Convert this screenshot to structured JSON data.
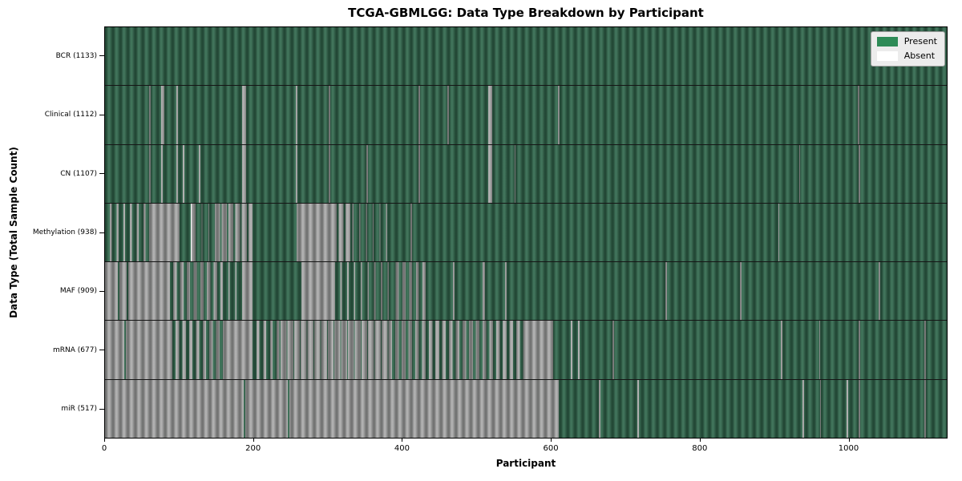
{
  "chart_data": {
    "type": "heatmap",
    "title": "TCGA-GBMLGG: Data Type Breakdown by Participant",
    "xlabel": "Participant",
    "ylabel": "Data Type (Total Sample Count)",
    "x_range": [
      0,
      1133
    ],
    "x_ticks": [
      0,
      200,
      400,
      600,
      800,
      1000
    ],
    "grid": false,
    "legend": {
      "position": "upper right",
      "entries": [
        {
          "label": "Present",
          "color": "#2e8b57"
        },
        {
          "label": "Absent",
          "color": "#ffffff"
        }
      ]
    },
    "colors": {
      "present": "#31684d",
      "absent": "#aaaaaa",
      "legend_bg": "#ececec"
    },
    "state_key": {
      "P": "present",
      "A": "absent",
      "M##": "mixed run, ## percent present"
    },
    "rows": [
      {
        "name": "BCR",
        "label": "BCR (1133)",
        "total": 1133,
        "segments": [
          [
            0,
            1133,
            "P"
          ]
        ]
      },
      {
        "name": "Clinical",
        "label": "Clinical (1112)",
        "total": 1112,
        "segments": [
          [
            0,
            59,
            "P"
          ],
          [
            59,
            61,
            "A"
          ],
          [
            61,
            75,
            "P"
          ],
          [
            75,
            80,
            "A"
          ],
          [
            80,
            96,
            "P"
          ],
          [
            96,
            98,
            "A"
          ],
          [
            98,
            184,
            "P"
          ],
          [
            184,
            190,
            "A"
          ],
          [
            190,
            257,
            "P"
          ],
          [
            257,
            259,
            "A"
          ],
          [
            259,
            301,
            "P"
          ],
          [
            301,
            303,
            "A"
          ],
          [
            303,
            422,
            "P"
          ],
          [
            422,
            424,
            "A"
          ],
          [
            424,
            461,
            "P"
          ],
          [
            461,
            463,
            "A"
          ],
          [
            463,
            516,
            "P"
          ],
          [
            516,
            521,
            "A"
          ],
          [
            521,
            610,
            "P"
          ],
          [
            610,
            612,
            "A"
          ],
          [
            612,
            1013,
            "P"
          ],
          [
            1013,
            1015,
            "A"
          ],
          [
            1015,
            1133,
            "P"
          ]
        ]
      },
      {
        "name": "CN",
        "label": "CN (1107)",
        "total": 1107,
        "segments": [
          [
            0,
            59,
            "P"
          ],
          [
            59,
            61,
            "A"
          ],
          [
            61,
            75,
            "P"
          ],
          [
            75,
            78,
            "A"
          ],
          [
            78,
            96,
            "P"
          ],
          [
            96,
            98,
            "A"
          ],
          [
            98,
            105,
            "P"
          ],
          [
            105,
            107,
            "A"
          ],
          [
            107,
            126,
            "P"
          ],
          [
            126,
            128,
            "A"
          ],
          [
            128,
            184,
            "P"
          ],
          [
            184,
            190,
            "A"
          ],
          [
            190,
            257,
            "P"
          ],
          [
            257,
            259,
            "A"
          ],
          [
            259,
            301,
            "P"
          ],
          [
            301,
            303,
            "A"
          ],
          [
            303,
            352,
            "P"
          ],
          [
            352,
            354,
            "A"
          ],
          [
            354,
            422,
            "P"
          ],
          [
            422,
            424,
            "A"
          ],
          [
            424,
            516,
            "P"
          ],
          [
            516,
            521,
            "A"
          ],
          [
            521,
            551,
            "P"
          ],
          [
            551,
            553,
            "A"
          ],
          [
            553,
            934,
            "P"
          ],
          [
            934,
            936,
            "A"
          ],
          [
            936,
            1014,
            "P"
          ],
          [
            1014,
            1016,
            "A"
          ],
          [
            1016,
            1133,
            "P"
          ]
        ]
      },
      {
        "name": "Methylation",
        "label": "Methylation (938)",
        "total": 938,
        "segments": [
          [
            0,
            59,
            "M72"
          ],
          [
            59,
            100,
            "A"
          ],
          [
            100,
            116,
            "P"
          ],
          [
            116,
            122,
            "A"
          ],
          [
            122,
            146,
            "M90"
          ],
          [
            146,
            199,
            "M25"
          ],
          [
            199,
            258,
            "P"
          ],
          [
            258,
            312,
            "A"
          ],
          [
            312,
            334,
            "M30"
          ],
          [
            334,
            386,
            "M85"
          ],
          [
            386,
            411,
            "P"
          ],
          [
            411,
            413,
            "A"
          ],
          [
            413,
            906,
            "P"
          ],
          [
            906,
            908,
            "A"
          ],
          [
            908,
            1133,
            "P"
          ]
        ]
      },
      {
        "name": "MAF",
        "label": "MAF (909)",
        "total": 909,
        "segments": [
          [
            0,
            17,
            "A"
          ],
          [
            17,
            19,
            "P"
          ],
          [
            19,
            29,
            "A"
          ],
          [
            29,
            31,
            "P"
          ],
          [
            31,
            87,
            "A"
          ],
          [
            87,
            159,
            "M50"
          ],
          [
            159,
            184,
            "M85"
          ],
          [
            184,
            199,
            "A"
          ],
          [
            199,
            264,
            "P"
          ],
          [
            264,
            310,
            "A"
          ],
          [
            310,
            386,
            "M80"
          ],
          [
            386,
            436,
            "M55"
          ],
          [
            436,
            468,
            "P"
          ],
          [
            468,
            471,
            "A"
          ],
          [
            471,
            508,
            "P"
          ],
          [
            508,
            511,
            "A"
          ],
          [
            511,
            538,
            "P"
          ],
          [
            538,
            541,
            "A"
          ],
          [
            541,
            754,
            "P"
          ],
          [
            754,
            756,
            "A"
          ],
          [
            756,
            855,
            "P"
          ],
          [
            855,
            857,
            "A"
          ],
          [
            857,
            1041,
            "P"
          ],
          [
            1041,
            1043,
            "A"
          ],
          [
            1043,
            1133,
            "P"
          ]
        ]
      },
      {
        "name": "mRNA",
        "label": "mRNA (677)",
        "total": 677,
        "segments": [
          [
            0,
            26,
            "A"
          ],
          [
            26,
            28,
            "P"
          ],
          [
            28,
            91,
            "A"
          ],
          [
            91,
            162,
            "M50"
          ],
          [
            162,
            199,
            "A"
          ],
          [
            199,
            235,
            "M60"
          ],
          [
            235,
            386,
            "M12"
          ],
          [
            386,
            565,
            "M45"
          ],
          [
            565,
            603,
            "A"
          ],
          [
            603,
            627,
            "P"
          ],
          [
            627,
            629,
            "A"
          ],
          [
            629,
            637,
            "P"
          ],
          [
            637,
            639,
            "A"
          ],
          [
            639,
            683,
            "P"
          ],
          [
            683,
            685,
            "A"
          ],
          [
            685,
            910,
            "P"
          ],
          [
            910,
            912,
            "A"
          ],
          [
            912,
            961,
            "P"
          ],
          [
            961,
            963,
            "A"
          ],
          [
            963,
            1014,
            "P"
          ],
          [
            1014,
            1016,
            "A"
          ],
          [
            1016,
            1103,
            "P"
          ],
          [
            1103,
            1105,
            "A"
          ],
          [
            1105,
            1133,
            "P"
          ]
        ]
      },
      {
        "name": "miR",
        "label": "miR (517)",
        "total": 517,
        "segments": [
          [
            0,
            187,
            "A"
          ],
          [
            187,
            189,
            "P"
          ],
          [
            189,
            246,
            "A"
          ],
          [
            246,
            248,
            "P"
          ],
          [
            248,
            611,
            "A"
          ],
          [
            611,
            665,
            "P"
          ],
          [
            665,
            667,
            "A"
          ],
          [
            667,
            717,
            "P"
          ],
          [
            717,
            719,
            "A"
          ],
          [
            719,
            939,
            "P"
          ],
          [
            939,
            941,
            "A"
          ],
          [
            941,
            962,
            "P"
          ],
          [
            962,
            964,
            "A"
          ],
          [
            964,
            998,
            "P"
          ],
          [
            998,
            1000,
            "A"
          ],
          [
            1000,
            1014,
            "P"
          ],
          [
            1014,
            1017,
            "A"
          ],
          [
            1017,
            1103,
            "P"
          ],
          [
            1103,
            1105,
            "A"
          ],
          [
            1105,
            1133,
            "P"
          ]
        ]
      }
    ]
  }
}
